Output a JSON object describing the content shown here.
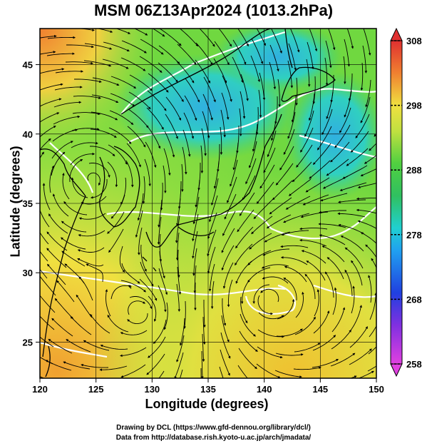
{
  "title": "MSM 06Z13Apr2024 (1013.2hPa)",
  "xaxis": {
    "label": "Longitude (degrees)",
    "ticks": [
      120,
      125,
      130,
      135,
      140,
      145,
      150
    ],
    "range": [
      120,
      150
    ]
  },
  "yaxis": {
    "label": "Latitude  (degrees)",
    "ticks": [
      25,
      30,
      35,
      40,
      45
    ],
    "range": [
      22.4,
      47.6
    ]
  },
  "colorbar": {
    "ticks": [
      258,
      268,
      278,
      288,
      298,
      308
    ],
    "range": [
      258,
      308
    ],
    "colors": [
      "#e040e0",
      "#8030e0",
      "#2040e0",
      "#20a0f0",
      "#20d0d0",
      "#30c060",
      "#50d040",
      "#a0e040",
      "#e0e040",
      "#f0b030",
      "#f07030",
      "#e03030"
    ]
  },
  "credits": {
    "line1": "Drawing by DCL (https://www.gfd-dennou.org/library/dcl/)",
    "line2": "Data from http://database.rish.kyoto-u.ac.jp/arch/jmadata/"
  },
  "map_colors": {
    "warm": "#f0a030",
    "mild": "#f0e040",
    "green": "#60d040",
    "cool": "#30c0e0"
  }
}
